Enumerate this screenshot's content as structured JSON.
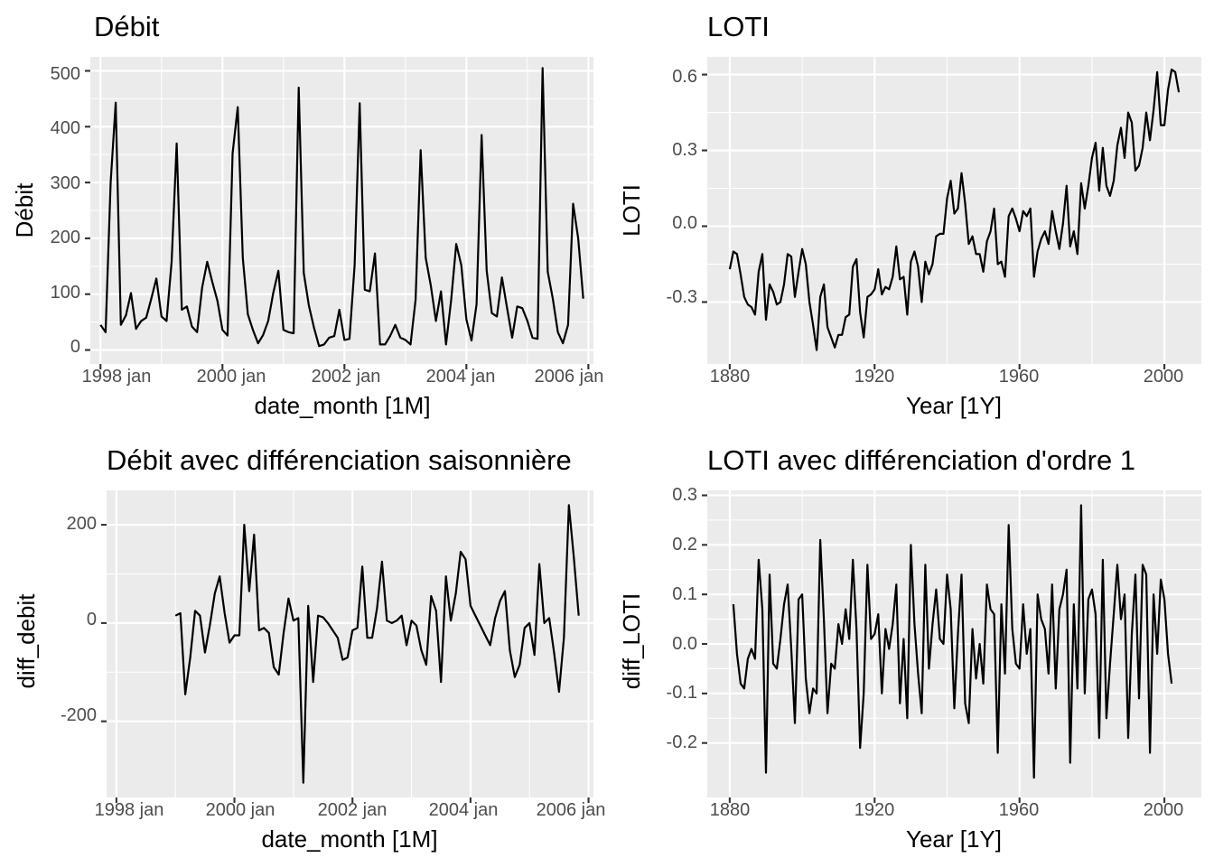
{
  "chart_data": [
    {
      "type": "line",
      "title": "Débit",
      "xlabel": "date_month [1M]",
      "ylabel": "Débit",
      "x_tick_labels": [
        "1998 jan",
        "2000 jan",
        "2002 jan",
        "2004 jan",
        "2006 jan"
      ],
      "y_tick_labels": [
        "0",
        "100",
        "200",
        "300",
        "400",
        "500"
      ],
      "xlim": [
        "1997-11",
        "2006-02"
      ],
      "ylim": [
        -25,
        525
      ],
      "grid": true,
      "x": [
        "1998-01",
        "1998-02",
        "1998-03",
        "1998-04",
        "1998-05",
        "1998-06",
        "1998-07",
        "1998-08",
        "1998-09",
        "1998-10",
        "1998-11",
        "1998-12",
        "1999-01",
        "1999-02",
        "1999-03",
        "1999-04",
        "1999-05",
        "1999-06",
        "1999-07",
        "1999-08",
        "1999-09",
        "1999-10",
        "1999-11",
        "1999-12",
        "2000-01",
        "2000-02",
        "2000-03",
        "2000-04",
        "2000-05",
        "2000-06",
        "2000-07",
        "2000-08",
        "2000-09",
        "2000-10",
        "2000-11",
        "2000-12",
        "2001-01",
        "2001-02",
        "2001-03",
        "2001-04",
        "2001-05",
        "2001-06",
        "2001-07",
        "2001-08",
        "2001-09",
        "2001-10",
        "2001-11",
        "2001-12",
        "2002-01",
        "2002-02",
        "2002-03",
        "2002-04",
        "2002-05",
        "2002-06",
        "2002-07",
        "2002-08",
        "2002-09",
        "2002-10",
        "2002-11",
        "2002-12",
        "2003-01",
        "2003-02",
        "2003-03",
        "2003-04",
        "2003-05",
        "2003-06",
        "2003-07",
        "2003-08",
        "2003-09",
        "2003-10",
        "2003-11",
        "2003-12",
        "2004-01",
        "2004-02",
        "2004-03",
        "2004-04",
        "2004-05",
        "2004-06",
        "2004-07",
        "2004-08",
        "2004-09",
        "2004-10",
        "2004-11",
        "2004-12",
        "2005-01",
        "2005-02",
        "2005-03",
        "2005-04",
        "2005-05",
        "2005-06",
        "2005-07",
        "2005-08",
        "2005-09",
        "2005-10",
        "2005-11",
        "2005-12"
      ],
      "values": [
        45,
        32,
        300,
        443,
        45,
        62,
        102,
        38,
        52,
        58,
        92,
        128,
        60,
        52,
        158,
        370,
        72,
        78,
        42,
        32,
        112,
        158,
        122,
        88,
        36,
        26,
        352,
        435,
        165,
        64,
        36,
        12,
        27,
        52,
        102,
        142,
        36,
        32,
        30,
        470,
        138,
        80,
        40,
        7,
        10,
        22,
        25,
        72,
        18,
        20,
        152,
        442,
        108,
        105,
        173,
        10,
        10,
        25,
        45,
        22,
        18,
        10,
        90,
        358,
        165,
        115,
        52,
        105,
        10,
        90,
        190,
        152,
        55,
        17,
        82,
        385,
        142,
        66,
        60,
        130,
        75,
        22,
        78,
        75,
        52,
        22,
        20,
        505,
        140,
        92,
        32,
        12,
        45,
        262,
        200,
        92
      ]
    },
    {
      "type": "line",
      "title": "LOTI",
      "xlabel": "Year [1Y]",
      "ylabel": "LOTI",
      "x_tick_labels": [
        "1880",
        "1920",
        "1960",
        "2000"
      ],
      "y_tick_labels": [
        "-0.3",
        "0.0",
        "0.3",
        "0.6"
      ],
      "xlim": [
        1873.8,
        2010.2
      ],
      "ylim": [
        -0.545,
        0.67
      ],
      "grid": true,
      "x_start": 1880,
      "x_end": 2004,
      "values": [
        -0.17,
        -0.1,
        -0.11,
        -0.19,
        -0.28,
        -0.31,
        -0.32,
        -0.35,
        -0.18,
        -0.11,
        -0.37,
        -0.23,
        -0.26,
        -0.31,
        -0.3,
        -0.23,
        -0.11,
        -0.12,
        -0.28,
        -0.18,
        -0.09,
        -0.15,
        -0.3,
        -0.39,
        -0.49,
        -0.28,
        -0.23,
        -0.4,
        -0.44,
        -0.48,
        -0.43,
        -0.43,
        -0.36,
        -0.35,
        -0.16,
        -0.13,
        -0.34,
        -0.44,
        -0.28,
        -0.27,
        -0.25,
        -0.17,
        -0.27,
        -0.24,
        -0.25,
        -0.2,
        -0.08,
        -0.21,
        -0.2,
        -0.35,
        -0.14,
        -0.1,
        -0.16,
        -0.3,
        -0.14,
        -0.19,
        -0.15,
        -0.04,
        -0.03,
        -0.03,
        0.11,
        0.18,
        0.05,
        0.07,
        0.21,
        0.09,
        -0.07,
        -0.04,
        -0.11,
        -0.11,
        -0.18,
        -0.06,
        -0.02,
        0.07,
        -0.15,
        -0.14,
        -0.2,
        0.04,
        0.07,
        0.03,
        -0.02,
        0.06,
        0.04,
        0.07,
        -0.2,
        -0.1,
        -0.05,
        -0.02,
        -0.07,
        0.06,
        -0.02,
        -0.09,
        0.01,
        0.16,
        -0.08,
        -0.02,
        -0.11,
        0.17,
        0.07,
        0.16,
        0.27,
        0.33,
        0.14,
        0.31,
        0.16,
        0.12,
        0.18,
        0.32,
        0.39,
        0.27,
        0.45,
        0.41,
        0.22,
        0.24,
        0.31,
        0.45,
        0.34,
        0.46,
        0.61,
        0.4,
        0.4,
        0.54,
        0.62,
        0.61,
        0.53
      ]
    },
    {
      "type": "line",
      "title": "Débit avec différenciation saisonnière",
      "xlabel": "date_month [1M]",
      "ylabel": "diff_debit",
      "x_tick_labels": [
        "1998 jan",
        "2000 jan",
        "2002 jan",
        "2004 jan",
        "2006 jan"
      ],
      "y_tick_labels": [
        "-200",
        "0",
        "200"
      ],
      "xlim": [
        "1997-11",
        "2006-02"
      ],
      "ylim": [
        -355,
        270
      ],
      "grid": true,
      "x_start": "1999-01",
      "x_end": "2005-12",
      "values": [
        15,
        20,
        -145,
        -70,
        25,
        15,
        -60,
        -5,
        60,
        95,
        20,
        -40,
        -25,
        -25,
        200,
        65,
        180,
        -15,
        -10,
        -20,
        -90,
        -105,
        -20,
        50,
        5,
        10,
        -325,
        35,
        -120,
        15,
        12,
        0,
        -15,
        -30,
        -75,
        -70,
        -15,
        -10,
        115,
        -30,
        -30,
        30,
        125,
        5,
        0,
        5,
        15,
        -45,
        5,
        -5,
        -55,
        -85,
        55,
        25,
        -120,
        95,
        5,
        60,
        145,
        130,
        35,
        15,
        -5,
        -25,
        -45,
        10,
        45,
        65,
        -55,
        -110,
        -85,
        -10,
        0,
        -65,
        120,
        0,
        10,
        -60,
        -140,
        -30,
        240,
        135,
        15
      ]
    },
    {
      "type": "line",
      "title": "LOTI avec différenciation d'ordre 1",
      "xlabel": "Year [1Y]",
      "ylabel": "diff_LOTI",
      "x_tick_labels": [
        "1880",
        "1920",
        "1960",
        "2000"
      ],
      "y_tick_labels": [
        "-0.2",
        "-0.1",
        "0.0",
        "0.1",
        "0.2",
        "0.3"
      ],
      "xlim": [
        1873.8,
        2010.2
      ],
      "ylim": [
        -0.31,
        0.31
      ],
      "grid": true,
      "x_start": 1881,
      "x_end": 2004,
      "values": [
        0.08,
        -0.02,
        -0.08,
        -0.09,
        -0.03,
        -0.01,
        -0.03,
        0.17,
        0.07,
        -0.26,
        0.14,
        -0.04,
        -0.05,
        0.01,
        0.08,
        0.12,
        -0.01,
        -0.16,
        0.09,
        0.1,
        -0.07,
        -0.14,
        -0.09,
        -0.1,
        0.21,
        0.05,
        -0.14,
        -0.04,
        -0.05,
        0.04,
        0.0,
        0.07,
        0.01,
        0.17,
        0.03,
        -0.21,
        -0.1,
        0.16,
        0.01,
        0.02,
        0.06,
        -0.1,
        0.03,
        -0.01,
        0.04,
        0.12,
        -0.12,
        0.01,
        -0.15,
        0.2,
        0.04,
        -0.06,
        -0.14,
        0.16,
        -0.05,
        0.04,
        0.11,
        0.01,
        0.0,
        0.14,
        0.07,
        -0.13,
        0.02,
        0.14,
        -0.12,
        -0.16,
        0.03,
        -0.07,
        0.0,
        -0.08,
        0.12,
        0.07,
        0.06,
        -0.22,
        0.08,
        -0.06,
        0.24,
        0.03,
        -0.04,
        -0.05,
        0.08,
        -0.02,
        0.03,
        -0.27,
        0.1,
        0.05,
        0.03,
        -0.06,
        0.12,
        -0.09,
        0.07,
        0.1,
        0.15,
        -0.24,
        0.08,
        -0.09,
        0.28,
        -0.1,
        0.09,
        0.11,
        0.06,
        -0.19,
        0.17,
        -0.15,
        -0.04,
        0.06,
        0.16,
        0.05,
        0.1,
        -0.19,
        0.02,
        0.14,
        -0.11,
        0.16,
        0.14,
        -0.22,
        0.1,
        -0.02,
        0.13,
        0.09,
        -0.02,
        -0.08
      ]
    }
  ]
}
